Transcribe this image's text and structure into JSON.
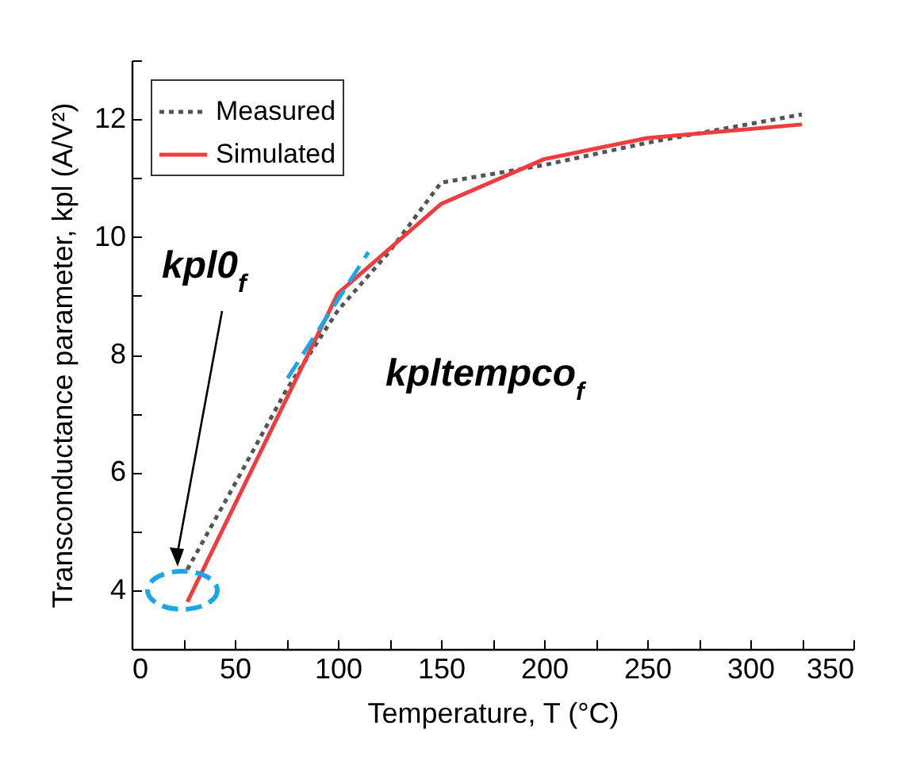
{
  "chart_data": {
    "type": "line",
    "xlabel": "Temperature, T (°C)",
    "ylabel": "Transconductance parameter, kpl (A/V²)",
    "xlim": [
      0,
      350
    ],
    "ylim": [
      3,
      13
    ],
    "xticks": [
      0,
      {
        "value": 25,
        "label": null
      },
      50,
      {
        "value": 75,
        "label": null
      },
      100,
      {
        "value": 125,
        "label": null
      },
      150,
      {
        "value": 175,
        "label": null
      },
      200,
      {
        "value": 225,
        "label": null
      },
      250,
      {
        "value": 275,
        "label": null
      },
      300,
      {
        "value": 325,
        "label": null
      },
      350
    ],
    "yticks": [
      {
        "value": 3,
        "label": null
      },
      4,
      {
        "value": 5,
        "label": null
      },
      6,
      {
        "value": 7,
        "label": null
      },
      8,
      {
        "value": 9,
        "label": null
      },
      10,
      {
        "value": 11,
        "label": null
      },
      12,
      {
        "value": 13,
        "label": null
      }
    ],
    "grid": false,
    "legend": "top left",
    "marker": "none",
    "annotations": [
      "kpl0$_{f}$",
      "kpltempco$_{f}$"
    ],
    "series": [
      {
        "name": "Measured",
        "color": "#555555",
        "line_style": "dotted",
        "x": [
          27,
          50,
          75,
          100,
          125,
          150,
          200,
          250,
          325
        ],
        "values": [
          4.35,
          5.8,
          7.4,
          8.75,
          9.75,
          10.92,
          11.22,
          11.6,
          12.08
        ]
      },
      {
        "name": "Simulated",
        "color": "#f03c3c",
        "line_style": "solid",
        "x": [
          27,
          100,
          150,
          200,
          250,
          325
        ],
        "values": [
          3.8,
          9.04,
          10.56,
          11.32,
          11.68,
          11.91
        ]
      },
      {
        "color": "#1aa7e8",
        "line_style": "dashed",
        "x": [
          75.6,
          114.8
        ],
        "values": [
          7.6,
          9.74
        ]
      }
    ]
  }
}
